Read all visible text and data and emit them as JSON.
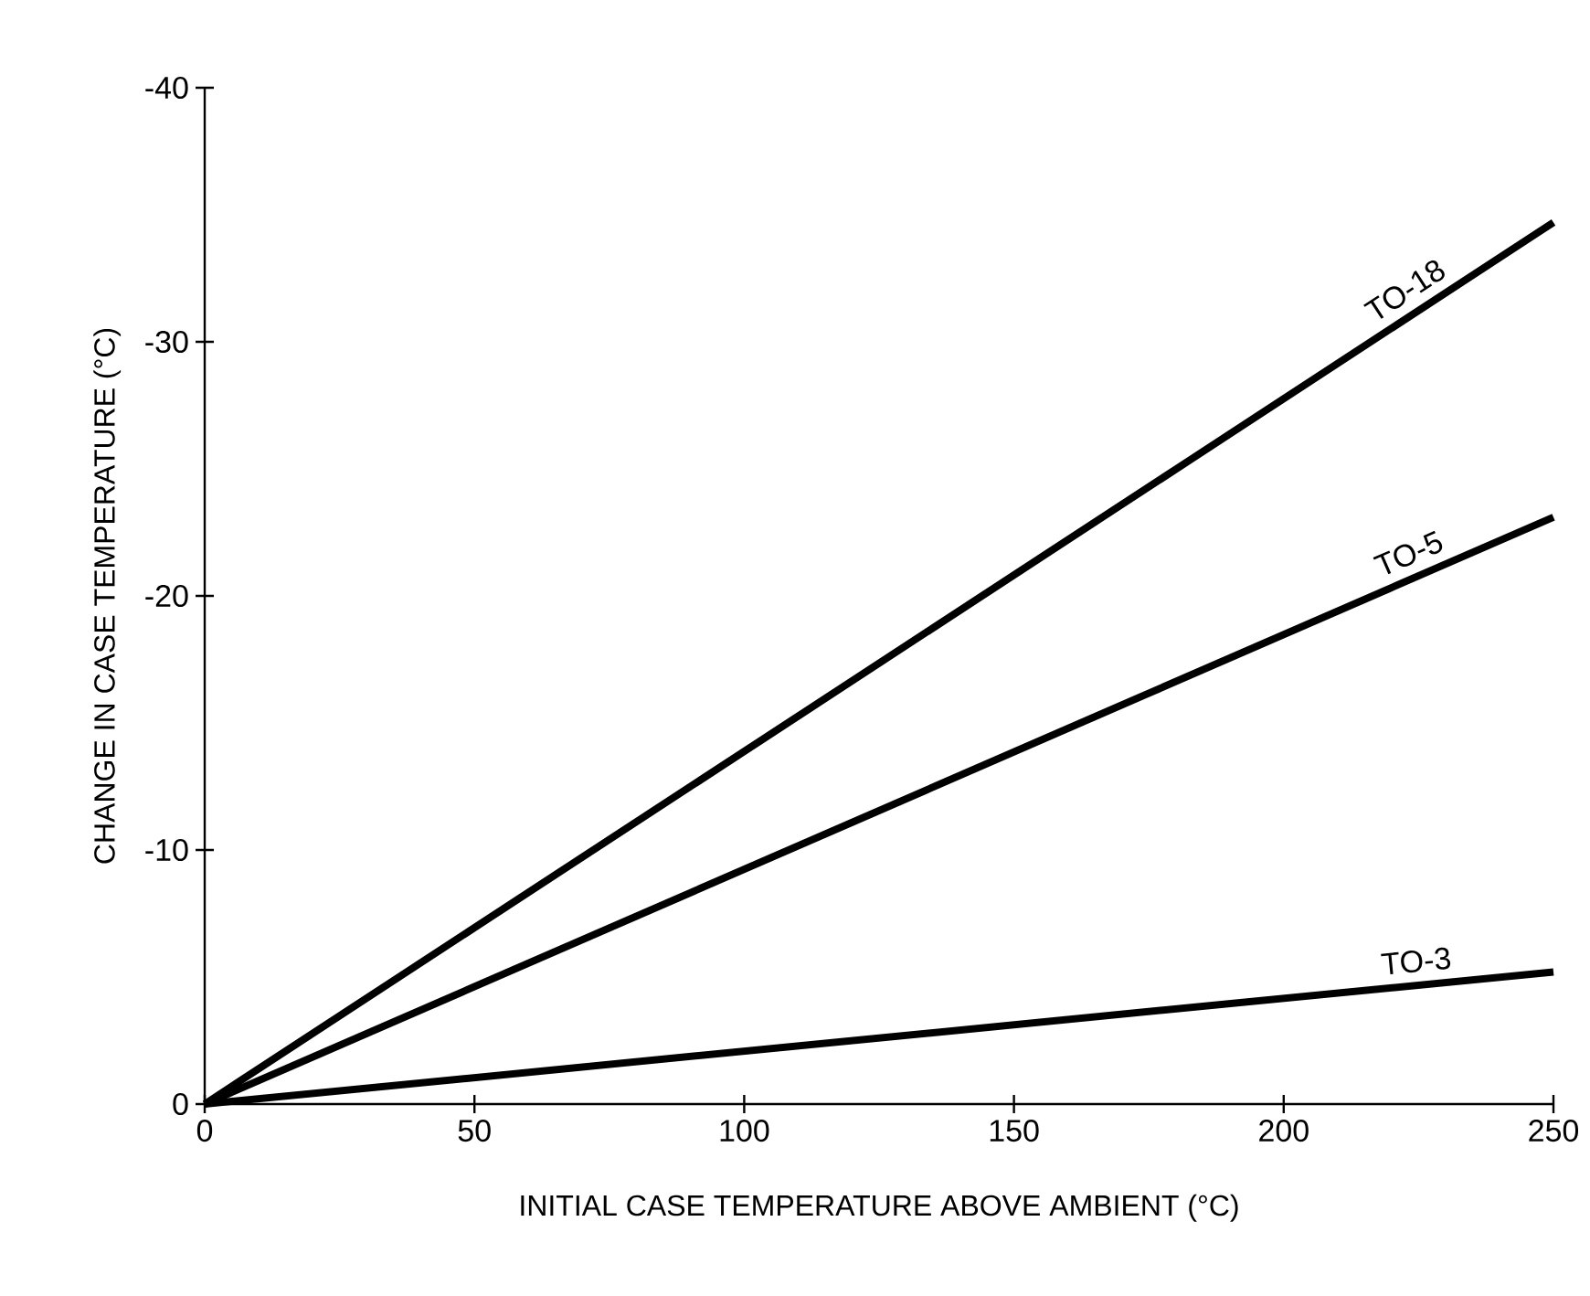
{
  "chart_data": {
    "type": "line",
    "xlabel": "INITIAL CASE TEMPERATURE ABOVE AMBIENT (°C)",
    "ylabel": "CHANGE IN CASE TEMPERATURE (°C)",
    "x": [
      0,
      250
    ],
    "series": [
      {
        "name": "TO-18",
        "color": "#000000",
        "values": [
          0,
          -34.7
        ]
      },
      {
        "name": "TO-5",
        "color": "#000000",
        "values": [
          0,
          -23.1
        ]
      },
      {
        "name": "TO-3",
        "color": "#000000",
        "values": [
          0,
          -5.2
        ]
      }
    ],
    "xlim": [
      0,
      250
    ],
    "ylim": [
      0,
      -40
    ],
    "xticks": [
      0,
      50,
      100,
      150,
      200,
      250
    ],
    "yticks": [
      -40,
      -30,
      -20,
      -10,
      0
    ],
    "grid": false,
    "legend": false,
    "line_style": "solid"
  }
}
